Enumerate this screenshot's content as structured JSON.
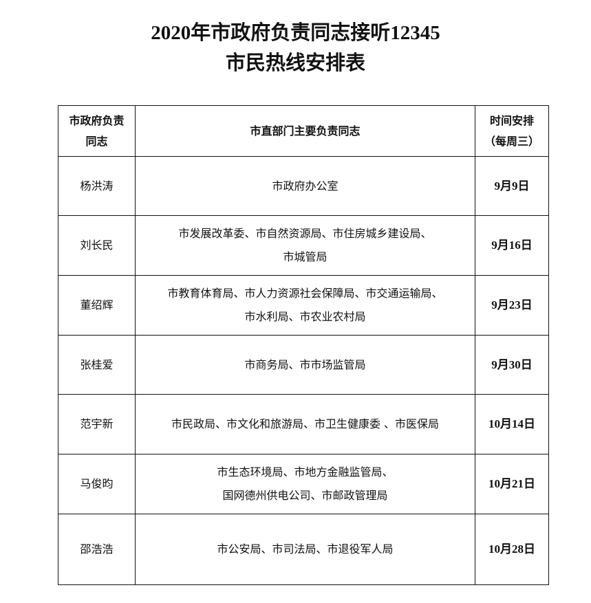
{
  "title": {
    "line1": "2020年市政府负责同志接听12345",
    "line2": "市民热线安排表"
  },
  "table": {
    "headers": {
      "leader": [
        "市政府负责",
        "同志"
      ],
      "departments": "市直部门主要负责同志",
      "schedule": [
        "时间安排",
        "（每周三）"
      ]
    },
    "rows": [
      {
        "leader": "杨洪涛",
        "departments": [
          "市政府办公室"
        ],
        "date": "9月9日"
      },
      {
        "leader": "刘长民",
        "departments": [
          "市发展改革委、市自然资源局、市住房城乡建设局、",
          "市城管局"
        ],
        "date": "9月16日"
      },
      {
        "leader": "董绍辉",
        "departments": [
          "市教育体育局、市人力资源社会保障局、市交通运输局、",
          "市水利局、市农业农村局"
        ],
        "date": "9月23日"
      },
      {
        "leader": "张桂爱",
        "departments": [
          "市商务局、市市场监管局"
        ],
        "date": "9月30日"
      },
      {
        "leader": "范宇新",
        "departments": [
          "市民政局、市文化和旅游局、市卫生健康委 、市医保局"
        ],
        "date": "10月14日"
      },
      {
        "leader": "马俊昀",
        "departments": [
          "市生态环境局、市地方金融监管局、",
          "国网德州供电公司、市邮政管理局"
        ],
        "date": "10月21日"
      },
      {
        "leader": "邵浩浩",
        "departments": [
          "市公安局、市司法局、市退役军人局"
        ],
        "date": "10月28日"
      }
    ]
  }
}
